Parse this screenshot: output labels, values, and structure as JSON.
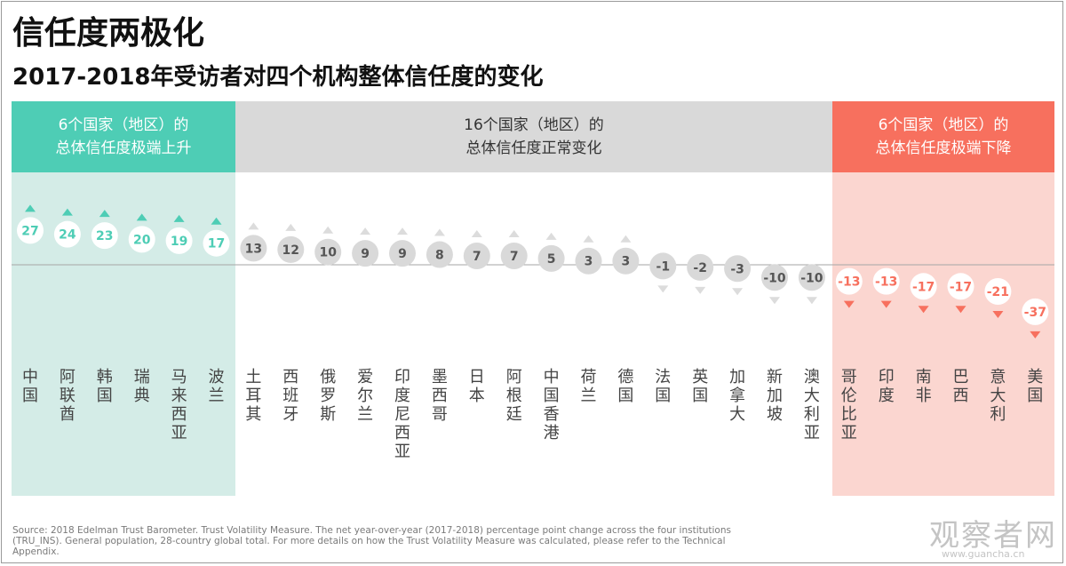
{
  "title": "信任度两极化",
  "subtitle": "2017-2018年受访者对四个机构整体信任度的变化",
  "groups": {
    "rise": {
      "line1": "6个国家（地区）的",
      "line2": "总体信任度极端上升",
      "color": "#4ecdb5",
      "bg": "#d4ece7"
    },
    "normal": {
      "line1": "16个国家（地区）的",
      "line2": "总体信任度正常变化",
      "color": "#d9d9d9",
      "bg": "#ffffff"
    },
    "fall": {
      "line1": "6个国家（地区）的",
      "line2": "总体信任度极端下降",
      "color": "#f7705e",
      "bg": "#fbd6d0"
    }
  },
  "chart_data": {
    "type": "scatter",
    "categories": [
      "中国",
      "阿联酋",
      "韩国",
      "瑞典",
      "马来西亚",
      "波兰",
      "土耳其",
      "西班牙",
      "俄罗斯",
      "爱尔兰",
      "印度尼西亚",
      "墨西哥",
      "日本",
      "阿根廷",
      "中国香港",
      "荷兰",
      "德国",
      "法国",
      "英国",
      "加拿大",
      "新加坡",
      "澳大利亚",
      "哥伦比亚",
      "印度",
      "南非",
      "巴西",
      "意大利",
      "美国"
    ],
    "values": [
      27,
      24,
      23,
      20,
      19,
      17,
      13,
      12,
      10,
      9,
      9,
      8,
      7,
      7,
      5,
      3,
      3,
      -1,
      -2,
      -3,
      -10,
      -10,
      -13,
      -13,
      -17,
      -17,
      -21,
      -37
    ],
    "group": [
      "rise",
      "rise",
      "rise",
      "rise",
      "rise",
      "rise",
      "normal",
      "normal",
      "normal",
      "normal",
      "normal",
      "normal",
      "normal",
      "normal",
      "normal",
      "normal",
      "normal",
      "normal",
      "normal",
      "normal",
      "normal",
      "normal",
      "fall",
      "fall",
      "fall",
      "fall",
      "fall",
      "fall"
    ],
    "colors": {
      "rise": "#4ecdb5",
      "normal": "#8c8c8c",
      "fall": "#f7705e"
    }
  },
  "source": "Source: 2018 Edelman Trust Barometer. Trust Volatility Measure. The net year-over-year (2017-2018) percentage point change across the four institutions (TRU_INS). General population, 28-country global total. For more details on how the Trust Volatility Measure was calculated, please refer to the Technical Appendix.",
  "watermark": "观察者网",
  "watermark_url": "www.guancha.cn"
}
